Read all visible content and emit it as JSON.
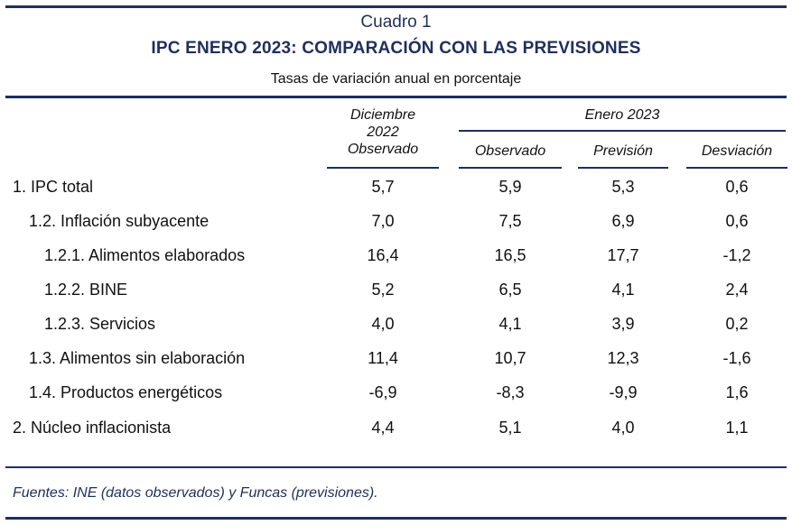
{
  "caption": {
    "number": "Cuadro 1",
    "title": "IPC ENERO 2023: COMPARACIÓN CON LAS PREVISIONES",
    "subtitle": "Tasas de variación anual en porcentaje"
  },
  "header": {
    "col1_line1": "Diciembre",
    "col1_line2": "2022",
    "col1_line3": "Observado",
    "group": "Enero 2023",
    "col2": "Observado",
    "col3": "Previsión",
    "col4": "Desviación"
  },
  "rows": [
    {
      "label": "1. IPC total",
      "dic": "5,7",
      "obs": "5,9",
      "prev": "5,3",
      "desv": "0,6"
    },
    {
      "label": "1.2. Inflación subyacente",
      "dic": "7,0",
      "obs": "7,5",
      "prev": "6,9",
      "desv": "0,6"
    },
    {
      "label": "1.2.1. Alimentos elaborados",
      "dic": "16,4",
      "obs": "16,5",
      "prev": "17,7",
      "desv": "-1,2"
    },
    {
      "label": "1.2.2. BINE",
      "dic": "5,2",
      "obs": "6,5",
      "prev": "4,1",
      "desv": "2,4"
    },
    {
      "label": "1.2.3. Servicios",
      "dic": "4,0",
      "obs": "4,1",
      "prev": "3,9",
      "desv": "0,2"
    },
    {
      "label": "1.3. Alimentos sin elaboración",
      "dic": "11,4",
      "obs": "10,7",
      "prev": "12,3",
      "desv": "-1,6"
    },
    {
      "label": "1.4. Productos energéticos",
      "dic": "-6,9",
      "obs": "-8,3",
      "prev": "-9,9",
      "desv": "1,6"
    },
    {
      "label": "2. Núcleo inflacionista",
      "dic": "4,4",
      "obs": "5,1",
      "prev": "4,0",
      "desv": "1,1"
    }
  ],
  "source": "Fuentes: INE (datos observados) y Funcas (previsiones)."
}
